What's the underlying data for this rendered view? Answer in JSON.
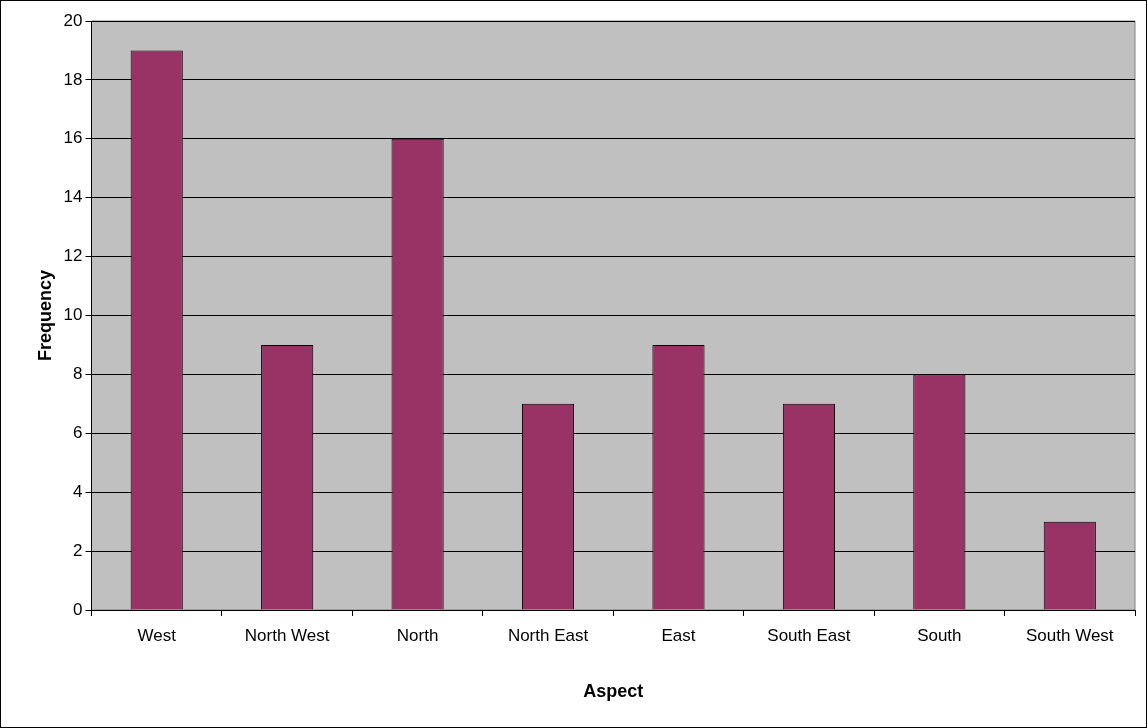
{
  "chart_data": {
    "type": "bar",
    "xlabel": "Aspect",
    "ylabel": "Frequency",
    "categories": [
      "West",
      "North West",
      "North",
      "North East",
      "East",
      "South East",
      "South",
      "South West"
    ],
    "values": [
      19,
      9,
      16,
      7,
      9,
      7,
      8,
      3
    ],
    "color": "#993366",
    "ylim": [
      0,
      20
    ],
    "yticks": [
      0,
      2,
      4,
      6,
      8,
      10,
      12,
      14,
      16,
      18,
      20
    ],
    "grid": "y",
    "legend": false
  }
}
